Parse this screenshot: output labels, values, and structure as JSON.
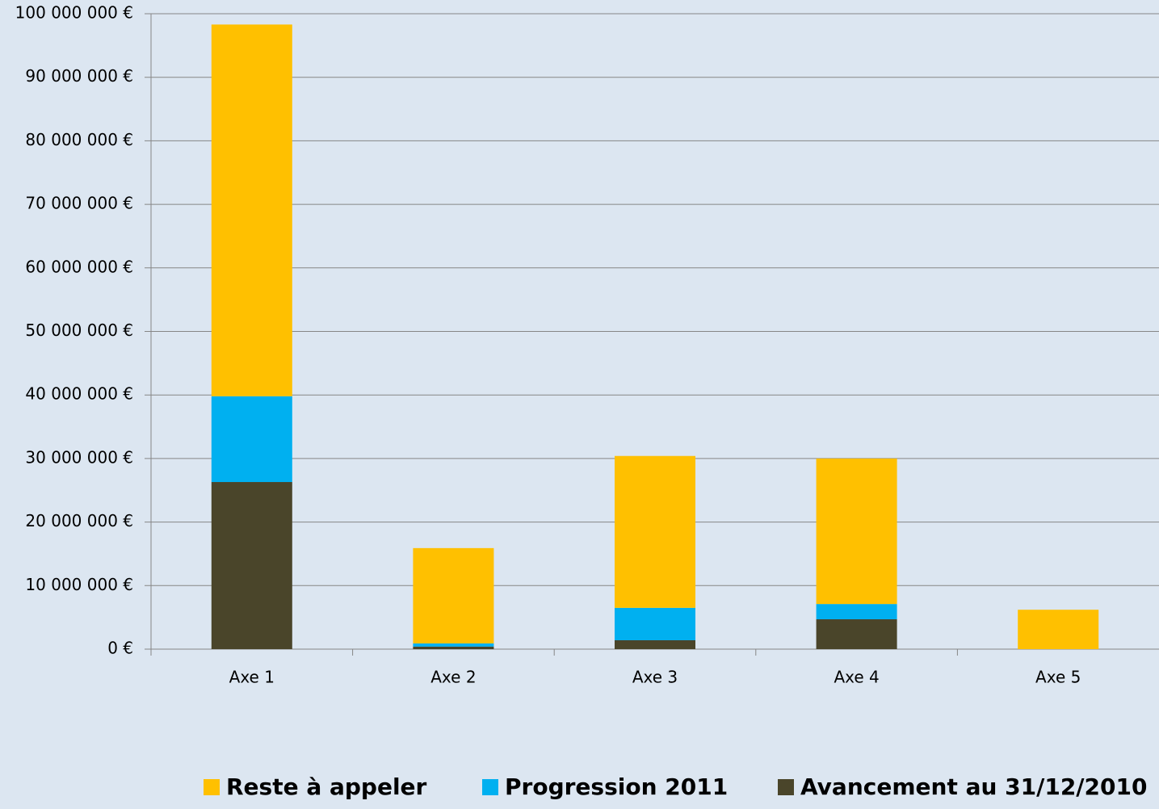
{
  "chart_data": {
    "type": "bar",
    "stacked": true,
    "categories": [
      "Axe 1",
      "Axe 2",
      "Axe 3",
      "Axe 4",
      "Axe 5"
    ],
    "series": [
      {
        "name": "Reste à appeler",
        "color": "#ffc000",
        "values": [
          58500000,
          15000000,
          23900000,
          22900000,
          6200000
        ]
      },
      {
        "name": "Progression 2011",
        "color": "#00b0f0",
        "values": [
          13500000,
          500000,
          5100000,
          2400000,
          0
        ]
      },
      {
        "name": "Avancement au 31/12/2010",
        "color": "#4a452a",
        "values": [
          26300000,
          400000,
          1400000,
          4700000,
          0
        ]
      }
    ],
    "ylim": [
      0,
      100000000
    ],
    "yticks": [
      {
        "value": 0,
        "label": "0 €"
      },
      {
        "value": 10000000,
        "label": "10 000 000 €"
      },
      {
        "value": 20000000,
        "label": "20 000 000 €"
      },
      {
        "value": 30000000,
        "label": "30 000 000 €"
      },
      {
        "value": 40000000,
        "label": "40 000 000 €"
      },
      {
        "value": 50000000,
        "label": "50 000 000 €"
      },
      {
        "value": 60000000,
        "label": "60 000 000 €"
      },
      {
        "value": 70000000,
        "label": "70 000 000 €"
      },
      {
        "value": 80000000,
        "label": "80 000 000 €"
      },
      {
        "value": 90000000,
        "label": "90 000 000 €"
      },
      {
        "value": 100000000,
        "label": "100 000 000 €"
      }
    ],
    "grid": true,
    "legend": "bottom"
  }
}
